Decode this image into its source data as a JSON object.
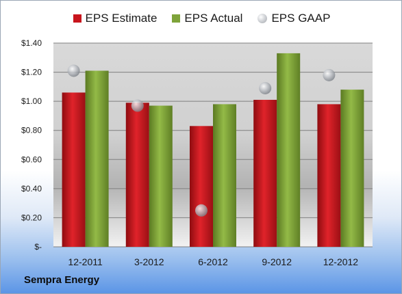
{
  "chart_data": {
    "type": "bar",
    "title": "",
    "xlabel": "",
    "ylabel": "",
    "categories": [
      "12-2011",
      "3-2012",
      "6-2012",
      "9-2012",
      "12-2012"
    ],
    "series": [
      {
        "name": "EPS Estimate",
        "kind": "bar",
        "color": "#c8141c",
        "values": [
          1.06,
          0.99,
          0.83,
          1.01,
          0.98
        ]
      },
      {
        "name": "EPS Actual",
        "kind": "bar",
        "color": "#7ea33a",
        "values": [
          1.21,
          0.97,
          0.98,
          1.33,
          1.08
        ]
      },
      {
        "name": "EPS GAAP",
        "kind": "marker",
        "color": "#b8bcc2",
        "values": [
          1.21,
          0.97,
          0.25,
          1.09,
          1.18
        ]
      }
    ],
    "ylim": [
      0,
      1.4
    ],
    "yticks": [
      0,
      0.2,
      0.4,
      0.6,
      0.8,
      1.0,
      1.2,
      1.4
    ],
    "ytick_labels": [
      "$-",
      "$0.20",
      "$0.40",
      "$0.60",
      "$0.80",
      "$1.00",
      "$1.20",
      "$1.40"
    ],
    "grid": true,
    "legend_position": "top"
  },
  "company": "Sempra Energy"
}
